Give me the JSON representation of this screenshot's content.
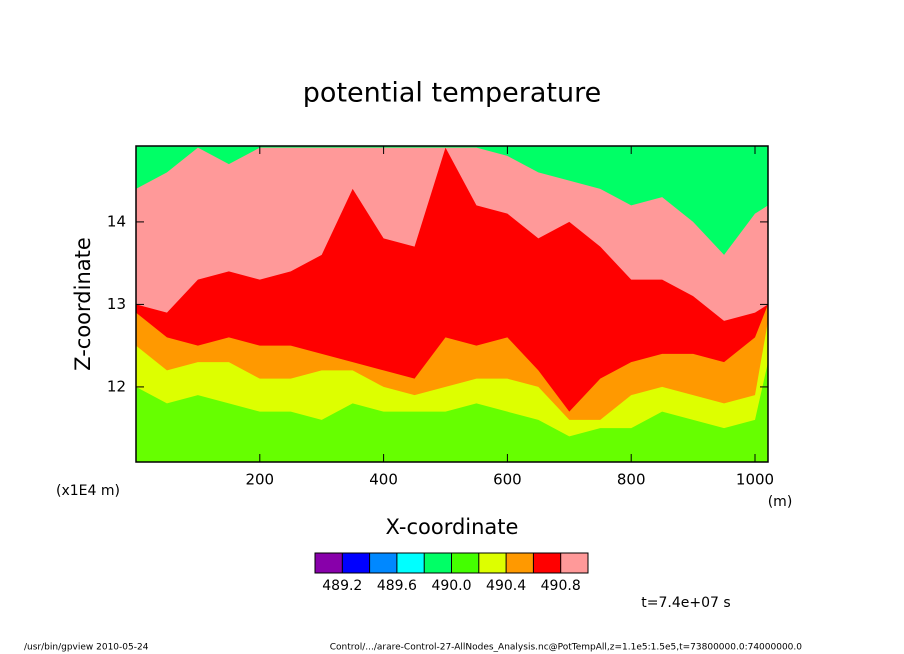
{
  "chart_data": {
    "type": "contour",
    "title": "potential temperature",
    "x_label": "X-coordinate",
    "y_label": "Z-coordinate",
    "x_unit": "(m)",
    "y_unit": "(x1E4 m)",
    "time_label": "t=7.4e+07 s",
    "footer_left": "/usr/bin/gpview   2010-05-24",
    "footer_right": "Control/.../arare-Control-27-AllNodes_Analysis.nc@PotTempAll,z=1.1e5:1.5e5,t=73800000.0:74000000.0",
    "xlim": [
      0,
      1021
    ],
    "ylim": [
      11.09,
      14.92
    ],
    "xticks": [
      200,
      400,
      600,
      800,
      1000
    ],
    "yticks": [
      12,
      13,
      14
    ],
    "base_color": "#00ff66",
    "x": [
      0,
      50,
      100,
      150,
      200,
      250,
      300,
      350,
      400,
      450,
      500,
      550,
      600,
      650,
      700,
      750,
      800,
      850,
      900,
      950,
      1000,
      1021
    ],
    "layers": [
      {
        "color": "#ff9999",
        "values": [
          14.4,
          14.6,
          14.9,
          14.7,
          14.9,
          14.9,
          14.9,
          14.9,
          14.9,
          14.9,
          14.9,
          14.9,
          14.8,
          14.6,
          14.5,
          14.4,
          14.2,
          14.3,
          14.0,
          13.6,
          14.1,
          14.2
        ]
      },
      {
        "color": "#ff0000",
        "values": [
          13.0,
          12.9,
          13.3,
          13.4,
          13.3,
          13.4,
          13.6,
          14.4,
          13.8,
          13.7,
          14.9,
          14.2,
          14.1,
          13.8,
          14.0,
          13.7,
          13.3,
          13.3,
          13.1,
          12.8,
          12.9,
          13.0
        ]
      },
      {
        "color": "#ff9900",
        "values": [
          12.9,
          12.6,
          12.5,
          12.6,
          12.5,
          12.5,
          12.4,
          12.3,
          12.2,
          12.1,
          12.6,
          12.5,
          12.6,
          12.2,
          11.7,
          12.1,
          12.3,
          12.4,
          12.4,
          12.3,
          12.6,
          13.0
        ]
      },
      {
        "color": "#ddff00",
        "values": [
          12.5,
          12.2,
          12.3,
          12.3,
          12.1,
          12.1,
          12.2,
          12.2,
          12.0,
          11.9,
          12.0,
          12.1,
          12.1,
          12.0,
          11.6,
          11.6,
          11.9,
          12.0,
          11.9,
          11.8,
          11.9,
          12.8
        ]
      },
      {
        "color": "#66ff00",
        "values": [
          12.0,
          11.8,
          11.9,
          11.8,
          11.7,
          11.7,
          11.6,
          11.8,
          11.7,
          11.7,
          11.7,
          11.8,
          11.7,
          11.6,
          11.4,
          11.5,
          11.5,
          11.7,
          11.6,
          11.5,
          11.6,
          12.3
        ]
      }
    ],
    "colorbar_colors": [
      "#8800aa",
      "#0000ff",
      "#0088ff",
      "#00ffff",
      "#00ff66",
      "#44ff00",
      "#ddff00",
      "#ff9900",
      "#ff0000",
      "#ff9999"
    ],
    "colorbar_lim": [
      489.0,
      491.0
    ],
    "levels": [
      489.2,
      489.4,
      489.6,
      489.8,
      490.0,
      490.2,
      490.4,
      490.6,
      490.8
    ],
    "colorbar_ticks": [
      489.2,
      489.6,
      {
        "value": 490,
        "label": "490.0"
      },
      490.4,
      490.8
    ]
  }
}
